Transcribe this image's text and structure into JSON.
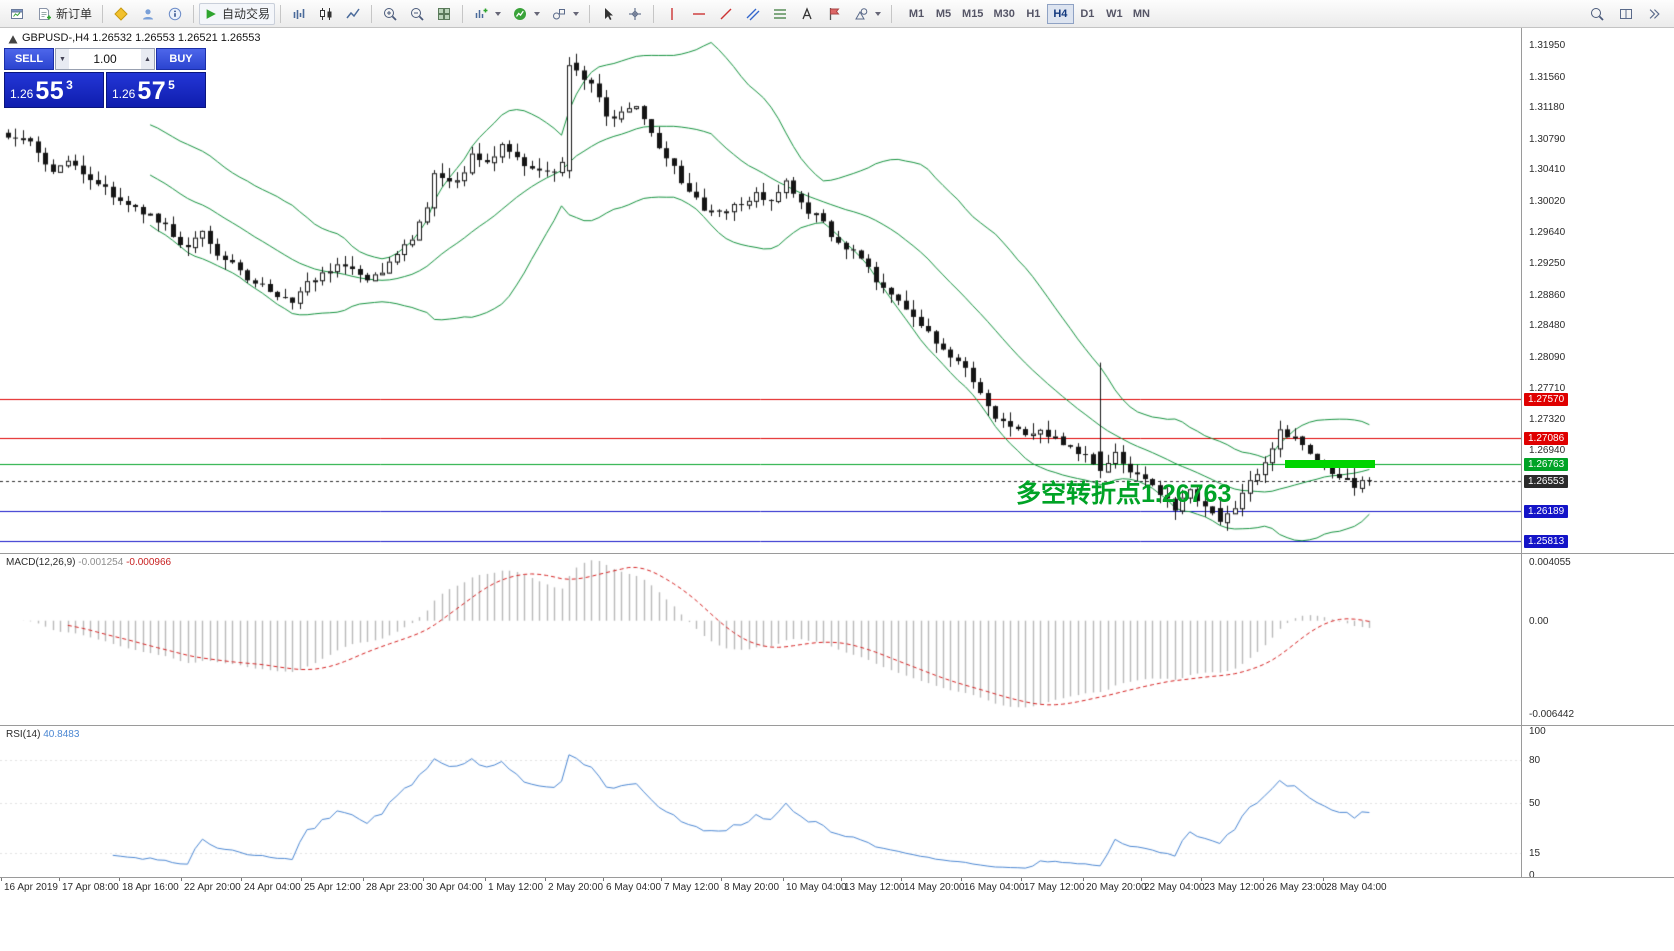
{
  "toolbar": {
    "new_order": "新订单",
    "auto_trading": "自动交易",
    "timeframes": [
      "M1",
      "M5",
      "M15",
      "M30",
      "H1",
      "H4",
      "D1",
      "W1",
      "MN"
    ],
    "active_timeframe": "H4"
  },
  "chart": {
    "title": "GBPUSD-,H4  1.26532 1.26553 1.26521 1.26553",
    "trade_panel": {
      "sell_label": "SELL",
      "buy_label": "BUY",
      "volume": "1.00",
      "sell_price": {
        "prefix": "1.26",
        "big": "55",
        "sup": "3"
      },
      "buy_price": {
        "prefix": "1.26",
        "big": "57",
        "sup": "5"
      }
    },
    "annotation": {
      "text": "多空转折点1.26763",
      "color": "#00a326"
    },
    "highlight": {
      "color": "#00d400"
    },
    "price_axis_labels": [
      "1.31950",
      "1.31560",
      "1.31180",
      "1.30790",
      "1.30410",
      "1.30020",
      "1.29640",
      "1.29250",
      "1.28860",
      "1.28480",
      "1.28090",
      "1.27710",
      "1.27320",
      "1.26940"
    ],
    "levels": [
      {
        "price": "1.27570",
        "color": "#df0000",
        "style": "solid"
      },
      {
        "price": "1.27086",
        "color": "#df0000",
        "style": "solid"
      },
      {
        "price": "1.26763",
        "color": "#00a326",
        "style": "solid"
      },
      {
        "price": "1.26553",
        "color": "#2b2b2b",
        "style": "dashed",
        "current": true
      },
      {
        "price": "1.26189",
        "color": "#1414c8",
        "style": "solid"
      },
      {
        "price": "1.25813",
        "color": "#1414c8",
        "style": "solid"
      }
    ]
  },
  "macd": {
    "name": "MACD(12,26,9)",
    "value_main": "-0.001254",
    "value_signal": "-0.000966",
    "axis": [
      "0.004055",
      "0.00",
      "-0.006442"
    ]
  },
  "rsi": {
    "name": "RSI(14)",
    "value": "40.8483",
    "axis": [
      "100",
      "80",
      "50",
      "15",
      "0"
    ],
    "levels": [
      80,
      50,
      15
    ]
  },
  "time_axis": [
    [
      "16 Apr 2019",
      4
    ],
    [
      "17 Apr 08:00",
      62
    ],
    [
      "18 Apr 16:00",
      122
    ],
    [
      "22 Apr 20:00",
      184
    ],
    [
      "24 Apr 04:00",
      244
    ],
    [
      "25 Apr 12:00",
      304
    ],
    [
      "28 Apr 23:00",
      366
    ],
    [
      "30 Apr 04:00",
      426
    ],
    [
      "1 May 12:00",
      488
    ],
    [
      "2 May 20:00",
      548
    ],
    [
      "6 May 04:00",
      606
    ],
    [
      "7 May 12:00",
      664
    ],
    [
      "8 May 20:00",
      724
    ],
    [
      "10 May 04:00",
      786
    ],
    [
      "13 May 12:00",
      844
    ],
    [
      "14 May 20:00",
      904
    ],
    [
      "16 May 04:00",
      964
    ],
    [
      "17 May 12:00",
      1024
    ],
    [
      "20 May 20:00",
      1086
    ],
    [
      "22 May 04:00",
      1144
    ],
    [
      "23 May 12:00",
      1204
    ],
    [
      "26 May 23:00",
      1266
    ],
    [
      "28 May 04:00",
      1326
    ]
  ],
  "colors": {
    "bollinger": "#12913c",
    "candle": "#141414",
    "bull_fill": "#ffffff",
    "macd_histogram": "#b9b9b9",
    "macd_signal": "#d42020",
    "rsi_line": "#4a86d2"
  },
  "chart_data": {
    "type": "candlestick",
    "symbol": "GBPUSD",
    "timeframe": "H4",
    "ohlc_title_values": [
      "1.26532",
      "1.26553",
      "1.26521",
      "1.26553"
    ],
    "num_candles": 183,
    "price_range": [
      1.258,
      1.3195
    ],
    "overlays": [
      "Bollinger Bands"
    ],
    "bollinger": {
      "period": 20,
      "deviation": 2
    },
    "indicators": [
      "MACD(12,26,9)",
      "RSI(14)"
    ],
    "horizontal_levels": [
      1.2757,
      1.27086,
      1.26763,
      1.26553,
      1.26189,
      1.25813
    ],
    "close_anchors": [
      [
        0,
        1.3085
      ],
      [
        3,
        1.3072
      ],
      [
        6,
        1.3042
      ],
      [
        8,
        1.3052
      ],
      [
        10,
        1.3032
      ],
      [
        13,
        1.3016
      ],
      [
        16,
        1.3001
      ],
      [
        18,
        1.2987
      ],
      [
        20,
        1.298
      ],
      [
        22,
        1.2958
      ],
      [
        24,
        1.2946
      ],
      [
        26,
        1.2962
      ],
      [
        28,
        1.2931
      ],
      [
        30,
        1.2925
      ],
      [
        32,
        1.2906
      ],
      [
        34,
        1.2898
      ],
      [
        36,
        1.2886
      ],
      [
        38,
        1.2878
      ],
      [
        40,
        1.29
      ],
      [
        42,
        1.2911
      ],
      [
        44,
        1.2922
      ],
      [
        46,
        1.2917
      ],
      [
        48,
        1.2906
      ],
      [
        50,
        1.2913
      ],
      [
        52,
        1.2936
      ],
      [
        54,
        1.2958
      ],
      [
        56,
        1.2996
      ],
      [
        57,
        1.3034
      ],
      [
        58,
        1.303
      ],
      [
        60,
        1.3027
      ],
      [
        62,
        1.3057
      ],
      [
        64,
        1.3047
      ],
      [
        66,
        1.3077
      ],
      [
        68,
        1.3052
      ],
      [
        70,
        1.3041
      ],
      [
        72,
        1.3036
      ],
      [
        74,
        1.3048
      ],
      [
        75,
        1.317
      ],
      [
        76,
        1.316
      ],
      [
        78,
        1.3146
      ],
      [
        80,
        1.3106
      ],
      [
        82,
        1.3111
      ],
      [
        84,
        1.3121
      ],
      [
        86,
        1.3086
      ],
      [
        88,
        1.3056
      ],
      [
        90,
        1.3026
      ],
      [
        92,
        1.3003
      ],
      [
        94,
        1.2986
      ],
      [
        96,
        1.2992
      ],
      [
        98,
        1.3002
      ],
      [
        100,
        1.3012
      ],
      [
        102,
        1.3002
      ],
      [
        104,
        1.3031
      ],
      [
        106,
        1.2996
      ],
      [
        108,
        1.2982
      ],
      [
        110,
        1.2962
      ],
      [
        112,
        1.2946
      ],
      [
        114,
        1.2926
      ],
      [
        116,
        1.2906
      ],
      [
        118,
        1.2886
      ],
      [
        120,
        1.2863
      ],
      [
        122,
        1.2846
      ],
      [
        124,
        1.2826
      ],
      [
        126,
        1.2806
      ],
      [
        128,
        1.2792
      ],
      [
        130,
        1.2766
      ],
      [
        132,
        1.2736
      ],
      [
        134,
        1.2722
      ],
      [
        136,
        1.2712
      ],
      [
        138,
        1.2722
      ],
      [
        140,
        1.2706
      ],
      [
        142,
        1.2696
      ],
      [
        144,
        1.2686
      ],
      [
        146,
        1.2668
      ],
      [
        148,
        1.2691
      ],
      [
        150,
        1.2666
      ],
      [
        152,
        1.2656
      ],
      [
        154,
        1.2636
      ],
      [
        156,
        1.2622
      ],
      [
        158,
        1.2642
      ],
      [
        160,
        1.2626
      ],
      [
        162,
        1.2605
      ],
      [
        164,
        1.2626
      ],
      [
        166,
        1.2652
      ],
      [
        168,
        1.2682
      ],
      [
        170,
        1.2717
      ],
      [
        172,
        1.2706
      ],
      [
        174,
        1.2686
      ],
      [
        176,
        1.2668
      ],
      [
        178,
        1.2661
      ],
      [
        180,
        1.2652
      ],
      [
        182,
        1.26553
      ]
    ],
    "special_candles": [
      {
        "i": 75,
        "o": 1.304,
        "h": 1.318,
        "l": 1.303,
        "c": 1.317
      },
      {
        "i": 146,
        "o": 1.2692,
        "h": 1.2802,
        "l": 1.2659,
        "c": 1.2668
      },
      {
        "i": 162,
        "o": 1.2622,
        "h": 1.2632,
        "l": 1.2601,
        "c": 1.2605
      }
    ]
  }
}
